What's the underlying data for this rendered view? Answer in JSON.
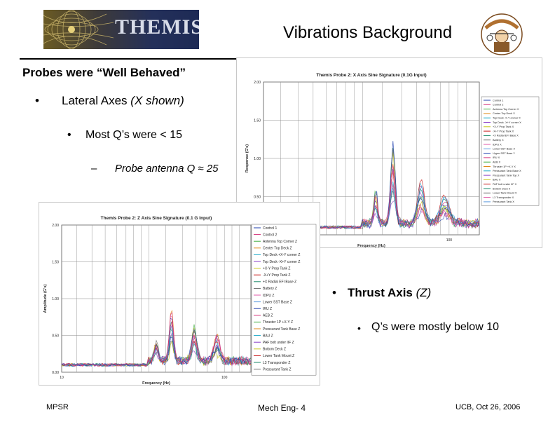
{
  "header": {
    "logo_text": "THEMIS",
    "slide_title": "Vibrations Background"
  },
  "content": {
    "heading": "Probes were “Well Behaved”",
    "bullet_symbol": "•",
    "dash_symbol": "–",
    "lateral_prefix": "Lateral Axes ",
    "lateral_suffix": "(X shown)",
    "q_lateral": "Most Q’s were < 15",
    "probe_antenna": "Probe antenna Q ≈ 25",
    "thrust_prefix": "Thrust Axis ",
    "thrust_suffix": "(Z)",
    "q_thrust": "Q’s were mostly below 10"
  },
  "footer": {
    "left": "MPSR",
    "center": "Mech Eng- 4",
    "right": "UCB, Oct 26, 2006"
  },
  "colors": {
    "logo_text": "#d8dce8",
    "rule": "#000000"
  },
  "chart_data": [
    {
      "type": "line",
      "title": "Themis Probe 2: X Axis Sine Signature (0.1G Input)",
      "xlabel": "Frequency (Hz)",
      "ylabel": "Response (G's)",
      "y_ticks": [
        "2.00",
        "1.50",
        "1.00",
        "0.50"
      ],
      "x_ticks": [
        "100"
      ],
      "legend_position": "right",
      "legend": [
        "Control 1",
        "Control 2",
        "Antenna Top Corner X",
        "Center Top Deck X",
        "Top Deck -X-Y corner X",
        "Top Deck -X+Y corner X",
        "+X-Y Prop Tank X",
        "-X+Y Prop Tank X",
        "+X Radial EFI Base X",
        "Battery X",
        "IDPU X",
        "Lower SST Base X",
        "Upper SST Base Y",
        "IRU X",
        "AEB X",
        "Thruster 1P +X-Y X",
        "Pressurant Tank Base X",
        "Pressurant Tank Top X",
        "BAU X",
        "PAF bolt under IIF X",
        "Bottom Deck X",
        "Lower Tank Mount X",
        "L3 Transponder X",
        "Pressurant Tank X"
      ]
    },
    {
      "type": "line",
      "title": "Themis Probe 2: Z Axis Sine Signature (0.1 G Input)",
      "xlabel": "Frequency (Hz)",
      "ylabel": "Amplitude (G's)",
      "y_ticks": [
        "2.00",
        "1.50",
        "1.00",
        "0.50",
        "0.00"
      ],
      "x_ticks": [
        "10",
        "100"
      ],
      "legend_position": "right",
      "legend": [
        "Control 1",
        "Control 2",
        "Antenna Top Corner Z",
        "Center Top Deck Z",
        "Top Deck +X-Y corner Z",
        "Top Deck -X+Y corner Z",
        "+X-Y Prop Tank Z",
        "-X+Y Prop Tank Z",
        "+X Radial EFI Base Z",
        "Battery Z",
        "IDPU Z",
        "Lower SST Base Z",
        "IRU Z",
        "AEB Z",
        "Thruster 1P +X-Y Z",
        "Pressurant Tank Base Z",
        "BAU Z",
        "PAF bolt under IIF Z",
        "Bottom Deck Z",
        "Lower Tank Mount Z",
        "L3 Transponder Z",
        "Pressurant Tank Z"
      ]
    }
  ]
}
